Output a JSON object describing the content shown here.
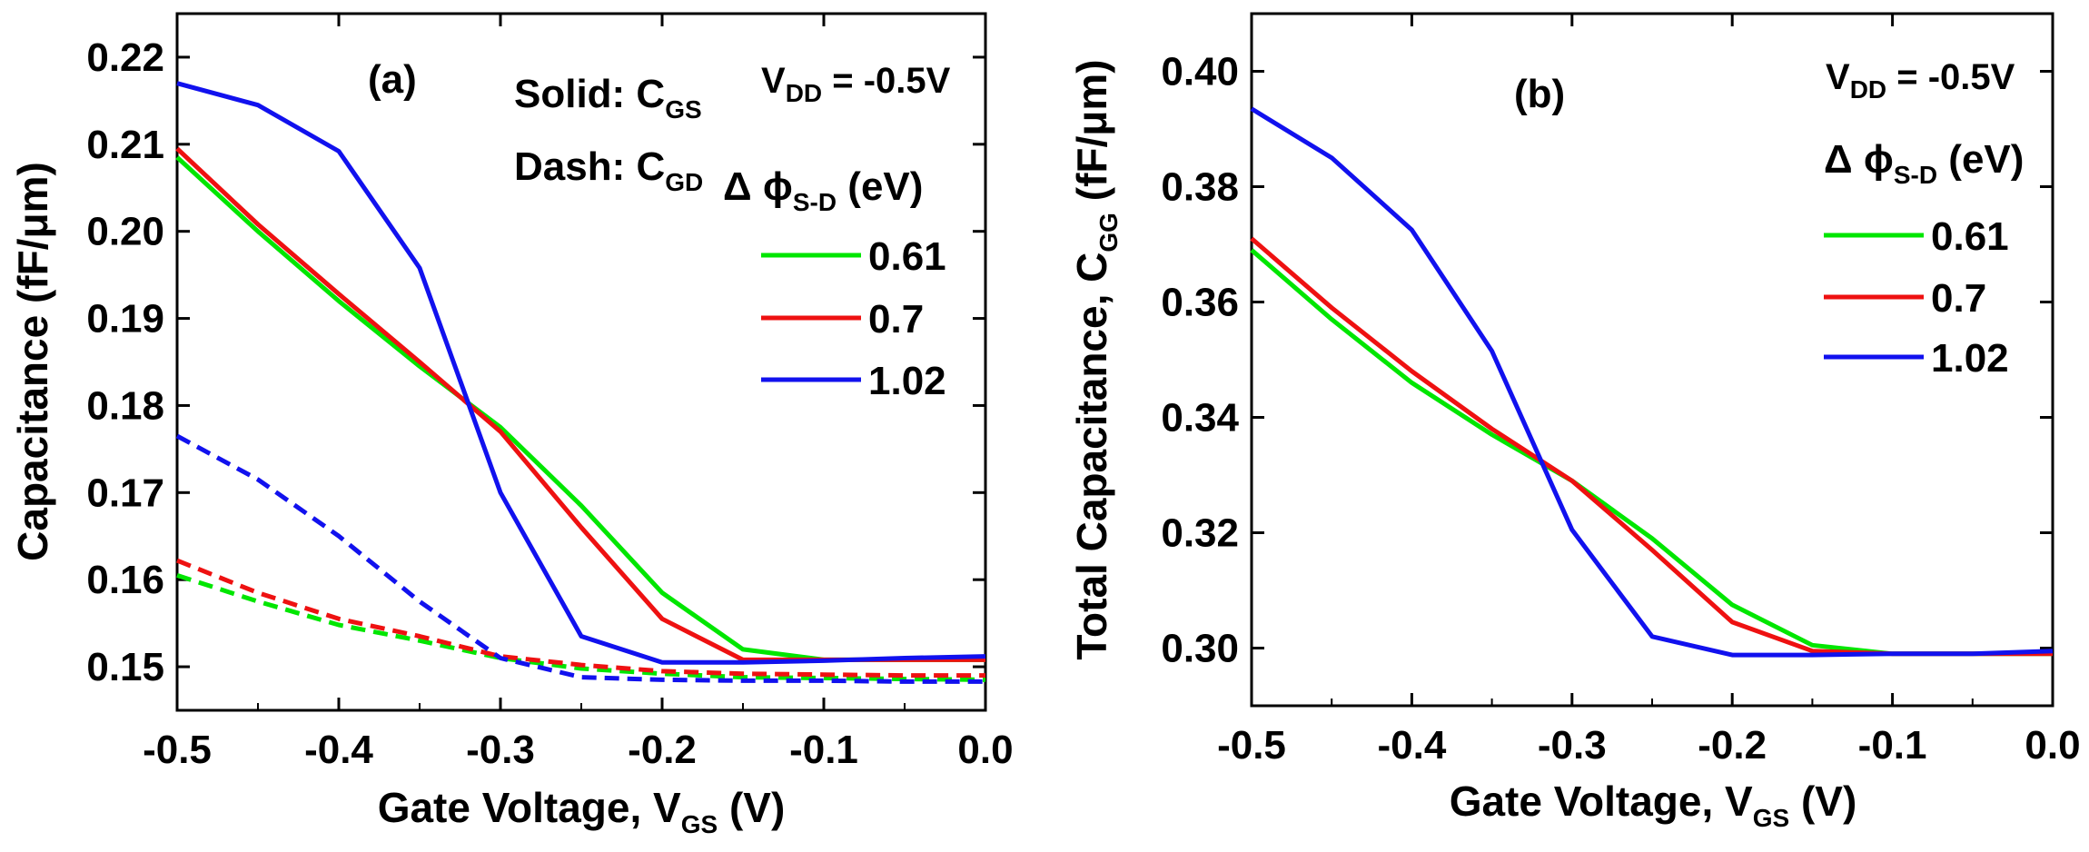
{
  "chart_data": [
    {
      "type": "line",
      "panel_label": "(a)",
      "xlabel": {
        "main": "Gate Voltage, V",
        "sub": "GS",
        "unit": " (V)"
      },
      "ylabel": "Capacitance (fF/μm)",
      "xlim": [
        -0.5,
        0.0
      ],
      "ylim": [
        0.145,
        0.225
      ],
      "x_ticks": [
        -0.5,
        -0.4,
        -0.3,
        -0.2,
        -0.1,
        0.0
      ],
      "x_tick_labels": [
        "-0.5",
        "-0.4",
        "-0.3",
        "-0.2",
        "-0.1",
        "0.0"
      ],
      "y_ticks": [
        0.15,
        0.16,
        0.17,
        0.18,
        0.19,
        0.2,
        0.21,
        0.22
      ],
      "y_tick_labels": [
        "0.15",
        "0.16",
        "0.17",
        "0.18",
        "0.19",
        "0.20",
        "0.21",
        "0.22"
      ],
      "notes": [
        {
          "main": "Solid: C",
          "sub": "GS"
        },
        {
          "main": "Dash: C",
          "sub": "GD"
        }
      ],
      "vdd": {
        "main": "V",
        "sub": "DD",
        "rest": " = -0.5V"
      },
      "legend_title": {
        "main": "Δ ϕ",
        "sub": "S-D",
        "rest": " (eV)"
      },
      "legend": [
        {
          "label": "0.61",
          "color": "#00e600"
        },
        {
          "label": "0.7",
          "color": "#ee1111"
        },
        {
          "label": "1.02",
          "color": "#1111ee"
        }
      ],
      "x": [
        -0.5,
        -0.45,
        -0.4,
        -0.35,
        -0.3,
        -0.25,
        -0.2,
        -0.15,
        -0.1,
        -0.05,
        0.0
      ],
      "series": [
        {
          "name": "0.61 CGS",
          "dash": false,
          "color": "#00e600",
          "values": [
            0.2085,
            0.2,
            0.192,
            0.1845,
            0.1775,
            0.1685,
            0.1585,
            0.152,
            0.1508,
            0.1508,
            0.1508
          ]
        },
        {
          "name": "0.7 CGS",
          "dash": false,
          "color": "#ee1111",
          "values": [
            0.2095,
            0.2008,
            0.1928,
            0.185,
            0.177,
            0.166,
            0.1555,
            0.1508,
            0.1508,
            0.1508,
            0.1508
          ]
        },
        {
          "name": "1.02 CGS",
          "dash": false,
          "color": "#1111ee",
          "values": [
            0.217,
            0.2145,
            0.2092,
            0.1958,
            0.17,
            0.1535,
            0.1505,
            0.1505,
            0.1507,
            0.151,
            0.1512
          ]
        },
        {
          "name": "0.61 CGD",
          "dash": true,
          "color": "#00e600",
          "values": [
            0.1605,
            0.1575,
            0.1548,
            0.153,
            0.151,
            0.1498,
            0.1492,
            0.1488,
            0.1487,
            0.1486,
            0.1485
          ]
        },
        {
          "name": "0.7 CGD",
          "dash": true,
          "color": "#ee1111",
          "values": [
            0.1622,
            0.1585,
            0.1555,
            0.1535,
            0.1512,
            0.1502,
            0.1495,
            0.1492,
            0.1491,
            0.149,
            0.149
          ]
        },
        {
          "name": "1.02 CGD",
          "dash": true,
          "color": "#1111ee",
          "values": [
            0.1765,
            0.1715,
            0.165,
            0.1575,
            0.151,
            0.1488,
            0.1485,
            0.1484,
            0.1484,
            0.1483,
            0.1483
          ]
        }
      ]
    },
    {
      "type": "line",
      "panel_label": "(b)",
      "xlabel": {
        "main": "Gate Voltage, V",
        "sub": "GS",
        "unit": " (V)"
      },
      "ylabel": {
        "main": "Total Capacitance, C",
        "sub": "GG",
        "rest": " (fF/μm)"
      },
      "xlim": [
        -0.5,
        0.0
      ],
      "ylim": [
        0.29,
        0.41
      ],
      "x_ticks": [
        -0.5,
        -0.4,
        -0.3,
        -0.2,
        -0.1,
        0.0
      ],
      "x_tick_labels": [
        "-0.5",
        "-0.4",
        "-0.3",
        "-0.2",
        "-0.1",
        "0.0"
      ],
      "y_ticks": [
        0.3,
        0.32,
        0.34,
        0.36,
        0.38,
        0.4
      ],
      "y_tick_labels": [
        "0.30",
        "0.32",
        "0.34",
        "0.36",
        "0.38",
        "0.40"
      ],
      "vdd": {
        "main": "V",
        "sub": "DD",
        "rest": " = -0.5V"
      },
      "legend_title": {
        "main": "Δ ϕ",
        "sub": "S-D",
        "rest": " (eV)"
      },
      "legend": [
        {
          "label": "0.61",
          "color": "#00e600"
        },
        {
          "label": "0.7",
          "color": "#ee1111"
        },
        {
          "label": "1.02",
          "color": "#1111ee"
        }
      ],
      "x": [
        -0.5,
        -0.45,
        -0.4,
        -0.35,
        -0.3,
        -0.25,
        -0.2,
        -0.15,
        -0.1,
        -0.05,
        0.0
      ],
      "series": [
        {
          "name": "0.61",
          "dash": false,
          "color": "#00e600",
          "values": [
            0.369,
            0.357,
            0.346,
            0.337,
            0.329,
            0.319,
            0.3075,
            0.3005,
            0.299,
            0.299,
            0.299
          ]
        },
        {
          "name": "0.7",
          "dash": false,
          "color": "#ee1111",
          "values": [
            0.371,
            0.359,
            0.348,
            0.338,
            0.329,
            0.317,
            0.3045,
            0.2995,
            0.299,
            0.299,
            0.299
          ]
        },
        {
          "name": "1.02",
          "dash": false,
          "color": "#1111ee",
          "values": [
            0.3935,
            0.385,
            0.3725,
            0.3515,
            0.3205,
            0.302,
            0.2988,
            0.2988,
            0.299,
            0.299,
            0.2995
          ]
        }
      ]
    }
  ]
}
